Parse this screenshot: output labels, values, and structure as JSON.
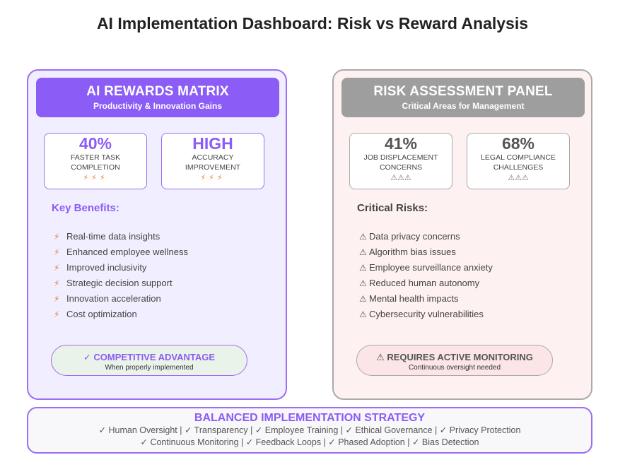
{
  "title": "AI Implementation Dashboard: Risk vs Reward Analysis",
  "rewards": {
    "header_title": "AI REWARDS MATRIX",
    "header_subtitle": "Productivity & Innovation Gains",
    "stats": [
      {
        "value": "40%",
        "label": "FASTER TASK COMPLETION",
        "icons": "⚡⚡⚡"
      },
      {
        "value": "HIGH",
        "label": "ACCURACY IMPROVEMENT",
        "icons": "⚡⚡⚡"
      }
    ],
    "heading": "Key Benefits:",
    "bullet_icon": "⚡",
    "items": [
      "Real-time data insights",
      "Enhanced employee wellness",
      "Improved inclusivity",
      "Strategic decision support",
      "Innovation acceleration",
      "Cost optimization"
    ],
    "pill_title": "✓ COMPETITIVE ADVANTAGE",
    "pill_subtitle": "When properly implemented",
    "colors": {
      "accent": "#8b5cf6",
      "background": "#f1efff",
      "bullet": "#f07b30"
    }
  },
  "risks": {
    "header_title": "RISK ASSESSMENT PANEL",
    "header_subtitle": "Critical Areas for Management",
    "stats": [
      {
        "value": "41%",
        "label": "JOB DISPLACEMENT CONCERNS",
        "icons": "⚠⚠⚠"
      },
      {
        "value": "68%",
        "label": "LEGAL COMPLIANCE CHALLENGES",
        "icons": "⚠⚠⚠"
      }
    ],
    "heading": "Critical Risks:",
    "bullet_icon": "⚠",
    "items": [
      "Data privacy concerns",
      "Algorithm bias issues",
      "Employee surveillance anxiety",
      "Reduced human autonomy",
      "Mental health impacts",
      "Cybersecurity vulnerabilities"
    ],
    "pill_title": "⚠ REQUIRES ACTIVE MONITORING",
    "pill_subtitle": "Continuous oversight needed",
    "colors": {
      "accent": "#9e9e9e",
      "background": "#fdf1f1"
    }
  },
  "strategy": {
    "title": "BALANCED IMPLEMENTATION STRATEGY",
    "line1": "✓ Human Oversight | ✓ Transparency | ✓ Employee Training | ✓ Ethical Governance | ✓ Privacy Protection",
    "line2": "✓ Continuous Monitoring | ✓ Feedback Loops | ✓ Phased Adoption | ✓ Bias Detection"
  }
}
